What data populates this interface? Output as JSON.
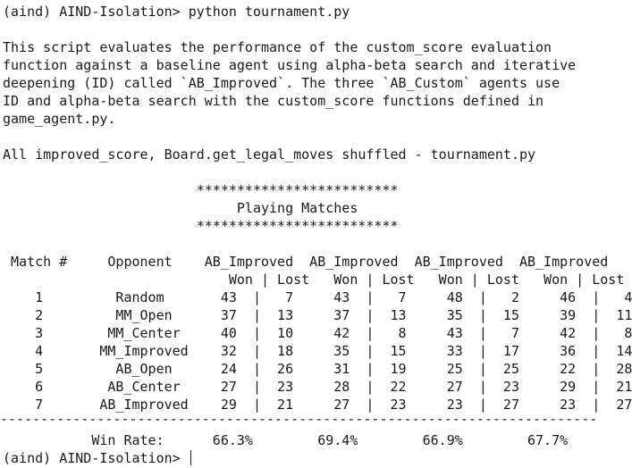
{
  "terminal": {
    "prompt_command": "(aind) AIND-Isolation> python tournament.py",
    "description": [
      "This script evaluates the performance of the custom_score evaluation",
      "function against a baseline agent using alpha-beta search and iterative",
      "deepening (ID) called `AB_Improved`. The three `AB_Custom` agents use",
      "ID and alpha-beta search with the custom_score functions defined in",
      "game_agent.py."
    ],
    "note": "All improved_score, Board.get_legal_moves shuffled - tournament.py",
    "banner": {
      "stars_top": "                        *************************",
      "title": "                             Playing Matches",
      "stars_bottom": "                        *************************"
    },
    "table": {
      "header1": " Match #     Opponent    AB_Improved  AB_Improved  AB_Improved  AB_Improved",
      "header2": "                            Won | Lost   Won | Lost   Won | Lost   Won | Lost",
      "rows": [
        "    1         Random       43  |   7     43  |   7     48  |   2     46  |   4",
        "    2         MM_Open      37  |  13     37  |  13     35  |  15     39  |  11",
        "    3        MM_Center     40  |  10     42  |   8     43  |   7     42  |   8",
        "    4       MM_Improved    32  |  18     35  |  15     33  |  17     36  |  14",
        "    5         AB_Open      24  |  26     31  |  19     25  |  25     22  |  28",
        "    6        AB_Center     27  |  23     28  |  22     27  |  23     29  |  21",
        "    7       AB_Improved    29  |  21     27  |  23     23  |  27     23  |  27"
      ],
      "separator": "--------------------------------------------------------------------------",
      "win_rate": "           Win Rate:      66.3%        69.4%        66.9%        67.7%"
    },
    "final_prompt": "(aind) AIND-Isolation> "
  }
}
